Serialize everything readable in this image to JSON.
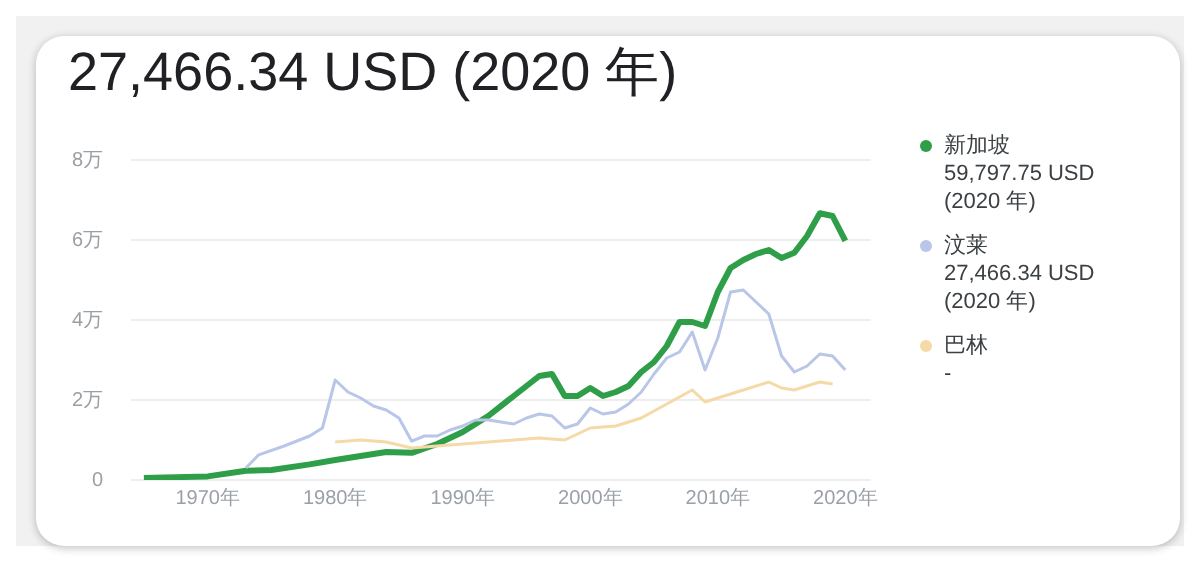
{
  "chart_data": {
    "type": "line",
    "title": "27,466.34 USD (2020 年)",
    "xlim": [
      1964,
      2022
    ],
    "xticks": [
      {
        "value": 1970,
        "label": "1970年"
      },
      {
        "value": 1980,
        "label": "1980年"
      },
      {
        "value": 1990,
        "label": "1990年"
      },
      {
        "value": 2000,
        "label": "2000年"
      },
      {
        "value": 2010,
        "label": "2010年"
      },
      {
        "value": 2020,
        "label": "2020年"
      }
    ],
    "ylim": [
      0,
      8
    ],
    "yticks": [
      0,
      {
        "value": 2,
        "label": "2万"
      },
      {
        "value": 4,
        "label": "4万"
      },
      {
        "value": 6,
        "label": "6万"
      },
      {
        "value": 8,
        "label": "8万"
      }
    ],
    "grid": "y",
    "legend": "right",
    "marker": "none",
    "annotations": [
      "59,797.75 USD (2020 年)",
      "27,466.34 USD (2020 年)",
      "-"
    ],
    "series": [
      {
        "name": "新加坡",
        "color": "#2e9e48",
        "x": [
          1965,
          1970,
          1973,
          1975,
          1978,
          1980,
          1982,
          1984,
          1986,
          1988,
          1990,
          1992,
          1994,
          1996,
          1997,
          1998,
          1999,
          2000,
          2001,
          2002,
          2003,
          2004,
          2005,
          2006,
          2007,
          2008,
          2009,
          2010,
          2011,
          2012,
          2013,
          2014,
          2015,
          2016,
          2017,
          2018,
          2019,
          2020
        ],
        "values": [
          0.05,
          0.09,
          0.23,
          0.25,
          0.39,
          0.5,
          0.6,
          0.7,
          0.68,
          0.9,
          1.2,
          1.6,
          2.1,
          2.6,
          2.65,
          2.1,
          2.1,
          2.3,
          2.1,
          2.2,
          2.35,
          2.7,
          2.95,
          3.35,
          3.95,
          3.95,
          3.85,
          4.7,
          5.3,
          5.5,
          5.65,
          5.75,
          5.55,
          5.68,
          6.1,
          6.67,
          6.6,
          5.98
        ]
      },
      {
        "name": "汶莱",
        "color": "#b9c6e8",
        "x": [
          1973,
          1974,
          1976,
          1978,
          1979,
          1980,
          1981,
          1982,
          1983,
          1984,
          1985,
          1986,
          1987,
          1988,
          1989,
          1990,
          1991,
          1992,
          1993,
          1994,
          1995,
          1996,
          1997,
          1998,
          1999,
          2000,
          2001,
          2002,
          2003,
          2004,
          2005,
          2006,
          2007,
          2008,
          2009,
          2010,
          2011,
          2012,
          2013,
          2014,
          2015,
          2016,
          2017,
          2018,
          2019,
          2020
        ],
        "values": [
          0.3,
          0.63,
          0.85,
          1.1,
          1.3,
          2.5,
          2.2,
          2.05,
          1.85,
          1.75,
          1.55,
          0.97,
          1.1,
          1.1,
          1.25,
          1.35,
          1.5,
          1.5,
          1.45,
          1.4,
          1.55,
          1.65,
          1.6,
          1.3,
          1.4,
          1.8,
          1.65,
          1.7,
          1.9,
          2.2,
          2.65,
          3.05,
          3.2,
          3.7,
          2.75,
          3.55,
          4.7,
          4.75,
          4.45,
          4.15,
          3.1,
          2.7,
          2.85,
          3.15,
          3.1,
          2.75
        ]
      },
      {
        "name": "巴林",
        "color": "#f5d9a6",
        "x": [
          1980,
          1982,
          1984,
          1986,
          1988,
          1990,
          1992,
          1994,
          1996,
          1998,
          2000,
          2002,
          2004,
          2006,
          2008,
          2009,
          2010,
          2012,
          2014,
          2015,
          2016,
          2017,
          2018,
          2019
        ],
        "values": [
          0.95,
          1.0,
          0.95,
          0.8,
          0.85,
          0.9,
          0.95,
          1.0,
          1.05,
          1.0,
          1.3,
          1.35,
          1.55,
          1.9,
          2.25,
          1.95,
          2.05,
          2.25,
          2.45,
          2.3,
          2.25,
          2.35,
          2.45,
          2.4
        ]
      }
    ]
  }
}
